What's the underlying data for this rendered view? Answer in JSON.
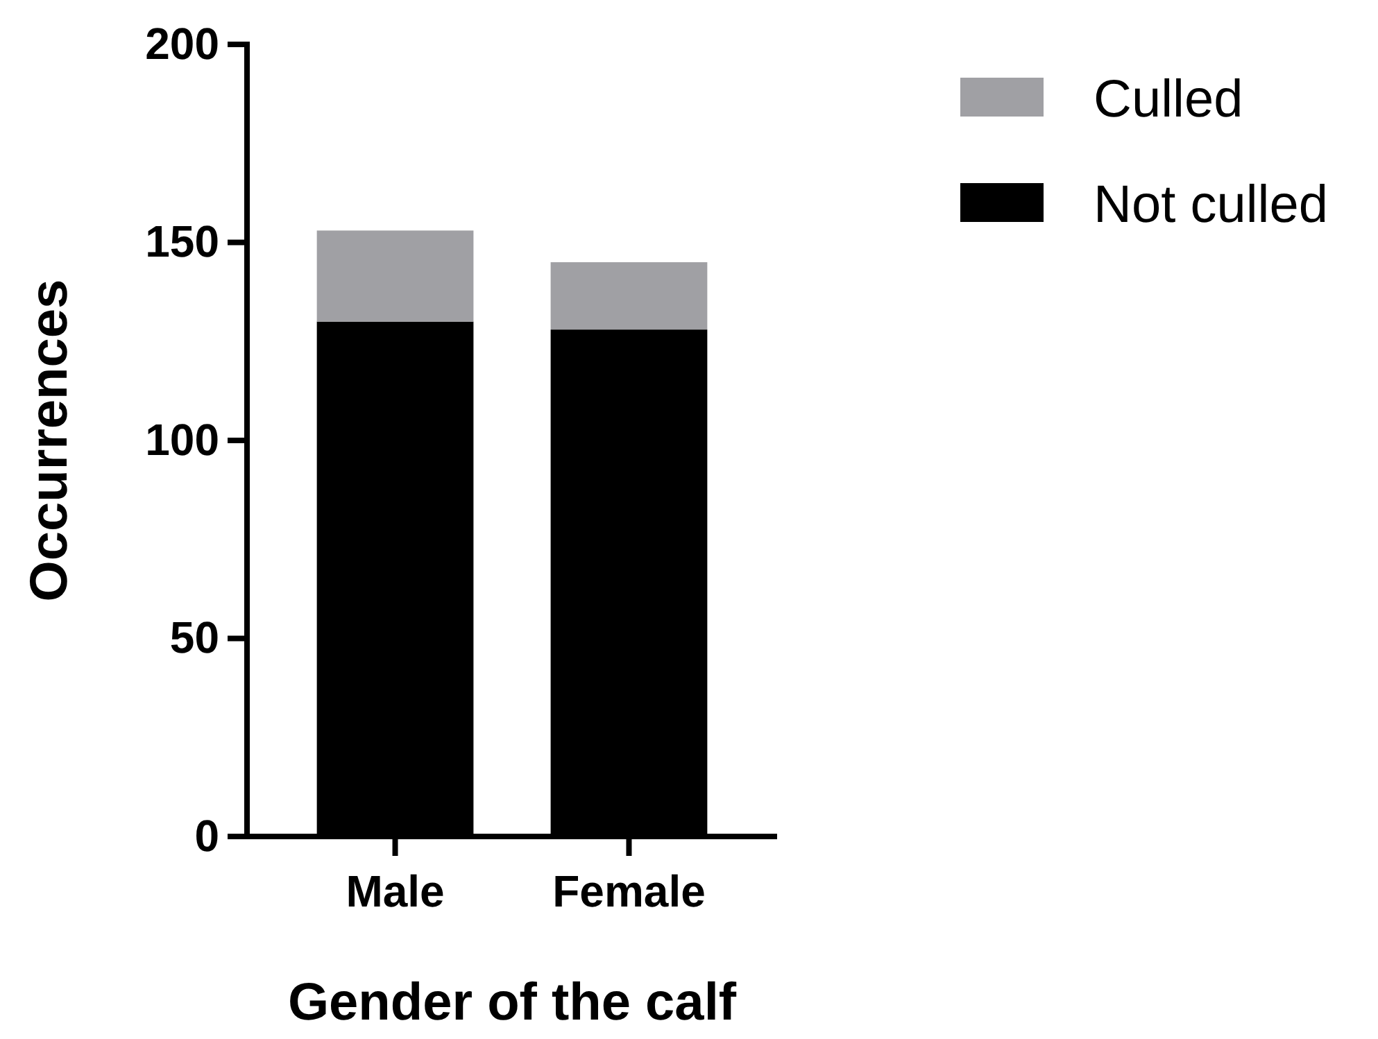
{
  "chart_data": {
    "type": "bar",
    "stacked": true,
    "xlabel": "Gender of the calf",
    "ylabel": "Occurrences",
    "categories": [
      "Male",
      "Female"
    ],
    "series": [
      {
        "name": "Not culled",
        "color": "#000000",
        "values": [
          130,
          128
        ]
      },
      {
        "name": "Culled",
        "color": "#a0a0a4",
        "values": [
          23,
          17
        ]
      }
    ],
    "ylim": [
      0,
      200
    ],
    "yticks": [
      0,
      50,
      100,
      150,
      200
    ],
    "grid": false,
    "legend": "top right"
  }
}
